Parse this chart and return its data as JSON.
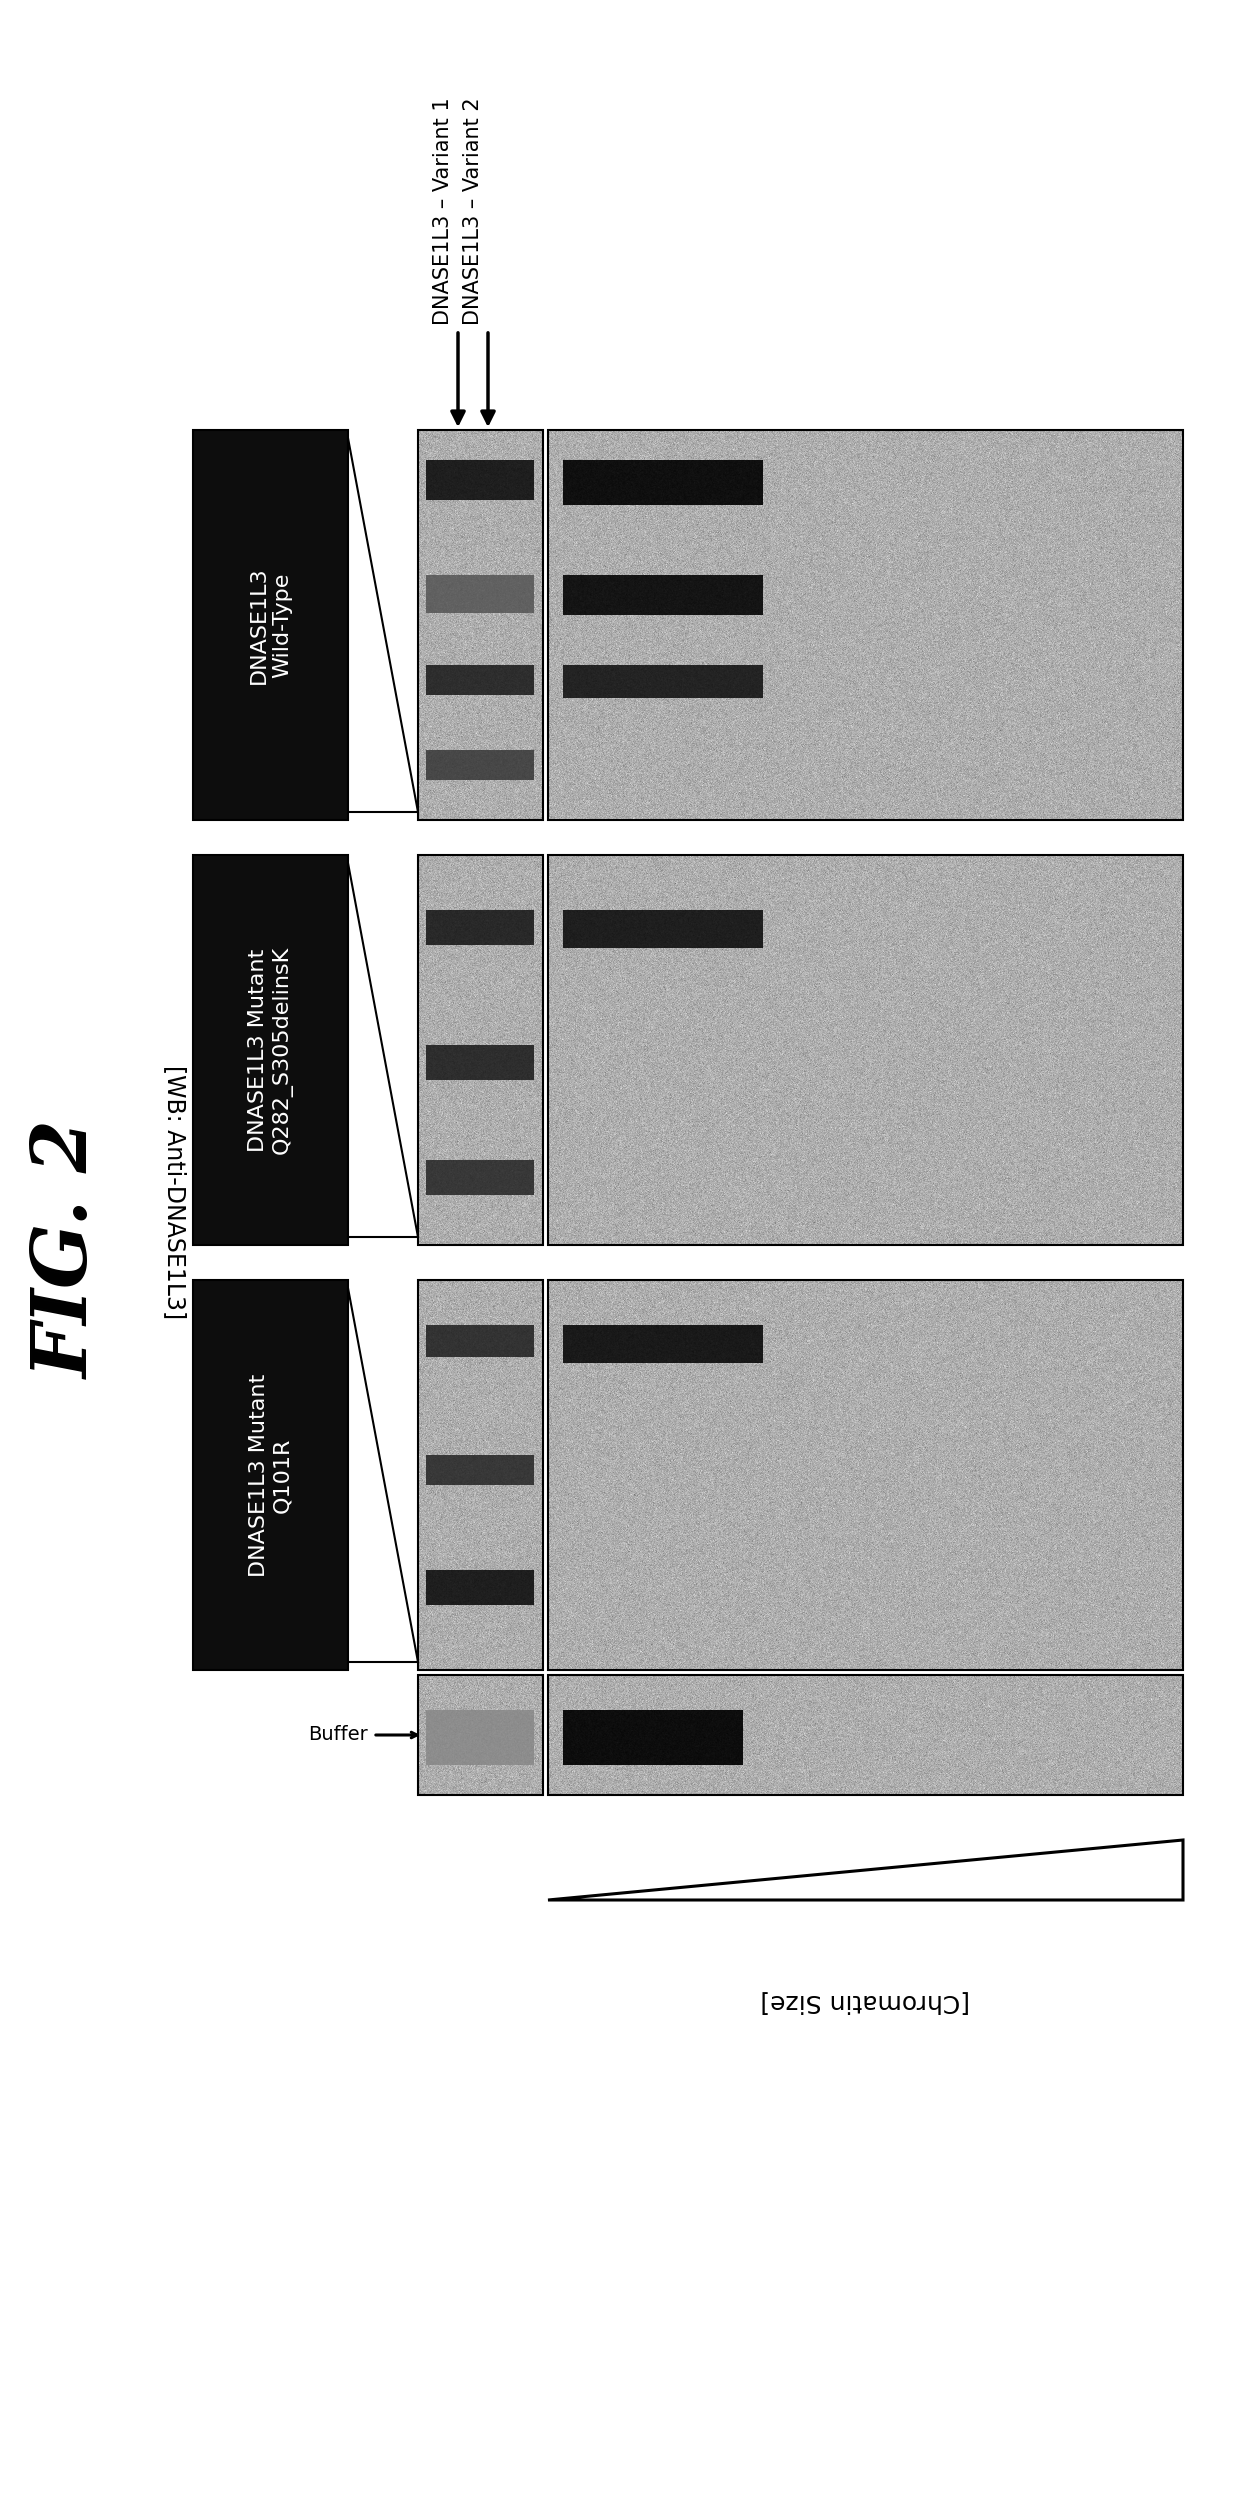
{
  "fig_title": "FIG. 2",
  "panel_labels": [
    "DNASE1L3\nWild-Type",
    "DNASE1L3 Mutant\nQ282_S305delinsK",
    "DNASE1L3 Mutant\nQ101R"
  ],
  "arrow_label_1": "DNASE1L3 – Variant 1",
  "arrow_label_2": "DNASE1L3 – Variant 2",
  "wb_label": "[WB: Anti-DNASE1L3]",
  "chromatin_label": "[Chromatin Size]",
  "buffer_label": "Buffer",
  "bg": "#ffffff",
  "black": "#000000",
  "dark_box": "#0d0d0d",
  "white": "#ffffff"
}
